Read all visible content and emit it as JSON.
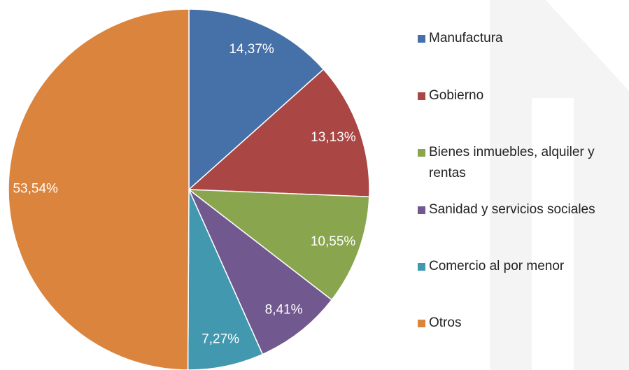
{
  "chart_data": {
    "type": "pie",
    "categories": [
      "Manufactura",
      "Gobierno",
      "Bienes inmuebles, alquiler y rentas",
      "Sanidad y servicios sociales",
      "Comercio al por menor",
      "Otros"
    ],
    "values": [
      14.37,
      13.13,
      10.55,
      8.41,
      7.27,
      53.54
    ],
    "value_labels": [
      "14,37%",
      "13,13%",
      "10,55%",
      "8,41%",
      "7,27%",
      "53,54%"
    ],
    "colors": [
      "#4571a8",
      "#aa4644",
      "#89a54e",
      "#71588f",
      "#4298af",
      "#db843d"
    ],
    "legend": "right"
  }
}
